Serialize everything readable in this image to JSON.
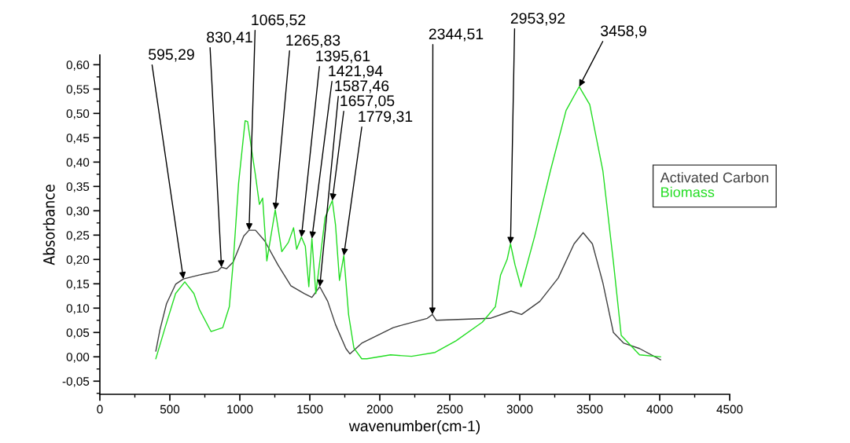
{
  "chart_data": {
    "type": "line",
    "xlabel": "wavenumber(cm-1)",
    "ylabel": "Absorbance",
    "xlim": [
      0,
      4500
    ],
    "xticks": [
      0,
      500,
      1000,
      1500,
      2000,
      2500,
      3000,
      3500,
      4000,
      4500
    ],
    "ylim": [
      -0.077,
      0.62
    ],
    "yticks": [
      {
        "value": -0.05,
        "label": "-0,05"
      },
      {
        "value": 0,
        "label": "0,00"
      },
      {
        "value": 0.05,
        "label": "0,05"
      },
      {
        "value": 0.1,
        "label": "0,10"
      },
      {
        "value": 0.15,
        "label": "0,15"
      },
      {
        "value": 0.2,
        "label": "0,20"
      },
      {
        "value": 0.25,
        "label": "0,25"
      },
      {
        "value": 0.3,
        "label": "0,30"
      },
      {
        "value": 0.35,
        "label": "0,35"
      },
      {
        "value": 0.4,
        "label": "0,40"
      },
      {
        "value": 0.45,
        "label": "0,45"
      },
      {
        "value": 0.5,
        "label": "0,50"
      },
      {
        "value": 0.55,
        "label": "0,55"
      },
      {
        "value": 0.6,
        "label": "0,60"
      }
    ],
    "grid": false,
    "legend": "right",
    "marker": "none",
    "line_style": "solid",
    "series": [
      {
        "name": "Activated Carbon",
        "color": "#404040",
        "x": [
          400,
          429,
          476,
          541,
          597,
          710,
          841,
          869,
          906,
          953,
          1028,
          1066,
          1112,
          1178,
          1272,
          1365,
          1459,
          1515,
          1571,
          1628,
          1684,
          1758,
          1787,
          1871,
          2096,
          2170,
          2339,
          2376,
          2404,
          2788,
          2938,
          3013,
          3144,
          3275,
          3388,
          3453,
          3519,
          3594,
          3669,
          3743,
          3856,
          4006
        ],
        "values": [
          0.012,
          0.055,
          0.109,
          0.149,
          0.16,
          0.168,
          0.176,
          0.184,
          0.181,
          0.195,
          0.248,
          0.26,
          0.26,
          0.238,
          0.189,
          0.146,
          0.13,
          0.122,
          0.144,
          0.114,
          0.066,
          0.017,
          0.006,
          0.028,
          0.06,
          0.066,
          0.079,
          0.087,
          0.075,
          0.079,
          0.094,
          0.087,
          0.114,
          0.162,
          0.232,
          0.255,
          0.232,
          0.152,
          0.05,
          0.028,
          0.017,
          -0.006
        ]
      },
      {
        "name": "Biomass",
        "color": "#22dd22",
        "x": [
          400,
          466,
          541,
          607,
          672,
          710,
          794,
          878,
          925,
          953,
          991,
          1038,
          1056,
          1084,
          1112,
          1140,
          1163,
          1193,
          1253,
          1300,
          1347,
          1384,
          1406,
          1440,
          1468,
          1493,
          1515,
          1543,
          1571,
          1609,
          1661,
          1684,
          1712,
          1743,
          1777,
          1815,
          1871,
          1908,
          2077,
          2227,
          2395,
          2545,
          2732,
          2826,
          2863,
          2910,
          2934,
          2966,
          3009,
          3107,
          3219,
          3331,
          3425,
          3500,
          3594,
          3669,
          3725,
          3856,
          4006
        ],
        "values": [
          -0.004,
          0.06,
          0.13,
          0.154,
          0.13,
          0.098,
          0.052,
          0.06,
          0.103,
          0.195,
          0.356,
          0.485,
          0.483,
          0.426,
          0.372,
          0.313,
          0.326,
          0.197,
          0.302,
          0.216,
          0.235,
          0.265,
          0.221,
          0.246,
          0.227,
          0.144,
          0.243,
          0.13,
          0.195,
          0.286,
          0.321,
          0.27,
          0.157,
          0.208,
          0.087,
          0.018,
          -0.004,
          -0.004,
          0.004,
          0.001,
          0.009,
          0.033,
          0.071,
          0.103,
          0.168,
          0.2,
          0.232,
          0.189,
          0.144,
          0.248,
          0.382,
          0.506,
          0.555,
          0.518,
          0.382,
          0.195,
          0.044,
          0.004,
          0.0
        ]
      }
    ],
    "annotations": [
      {
        "text": "595,29",
        "x": 597,
        "y": 0.16
      },
      {
        "text": "830,41",
        "x": 869,
        "y": 0.184
      },
      {
        "text": "1065,52",
        "x": 1066,
        "y": 0.26
      },
      {
        "text": "1265,83",
        "x": 1253,
        "y": 0.302
      },
      {
        "text": "1395,61",
        "x": 1440,
        "y": 0.246
      },
      {
        "text": "1421,94",
        "x": 1515,
        "y": 0.243
      },
      {
        "text": "1587,46",
        "x": 1571,
        "y": 0.144
      },
      {
        "text": "1657,05",
        "x": 1661,
        "y": 0.321
      },
      {
        "text": "1779,31",
        "x": 1743,
        "y": 0.208
      },
      {
        "text": "2344,51",
        "x": 2376,
        "y": 0.087
      },
      {
        "text": "2953,92",
        "x": 2934,
        "y": 0.232
      },
      {
        "text": "3458,9",
        "x": 3425,
        "y": 0.555
      }
    ]
  }
}
